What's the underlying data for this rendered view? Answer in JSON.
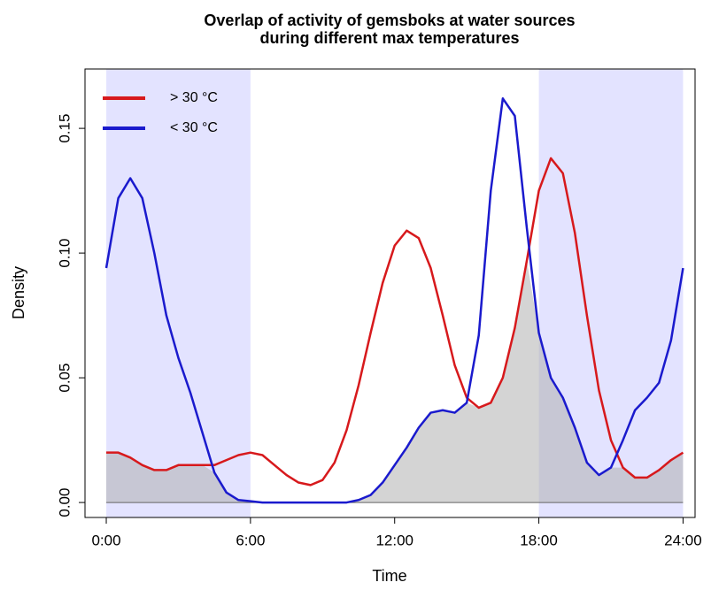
{
  "chart_data": {
    "type": "line",
    "title": [
      "Overlap of activity of gemsboks at water sources",
      "during different max temperatures"
    ],
    "x_label": "Time",
    "y_label": "Density",
    "xlim": [
      -0.885,
      24.5
    ],
    "ylim": [
      -0.006,
      0.1738
    ],
    "xticks": [
      {
        "value": 0,
        "label": "0:00"
      },
      {
        "value": 6,
        "label": "6:00"
      },
      {
        "value": 12,
        "label": "12:00"
      },
      {
        "value": 18,
        "label": "18:00"
      },
      {
        "value": 24,
        "label": "24:00"
      }
    ],
    "yticks": [
      {
        "value": 0,
        "label": "0.00"
      },
      {
        "value": 0.05,
        "label": "0.05"
      },
      {
        "value": 0.1,
        "label": "0.10"
      },
      {
        "value": 0.15,
        "label": "0.15"
      }
    ],
    "shaded_regions": [
      [
        0,
        6
      ],
      [
        18,
        24
      ]
    ],
    "shade_color": "#e0e0ff",
    "overlap_color": "#b0b0b0",
    "legend": "top-left",
    "x": [
      0,
      0.5,
      1,
      1.5,
      2,
      2.5,
      3,
      3.5,
      4,
      4.5,
      5,
      5.5,
      6,
      6.5,
      7,
      7.5,
      8,
      8.5,
      9,
      9.5,
      10,
      10.5,
      11,
      11.5,
      12,
      12.5,
      13,
      13.5,
      14,
      14.5,
      15,
      15.5,
      16,
      16.5,
      17,
      17.5,
      18,
      18.5,
      19,
      19.5,
      20,
      20.5,
      21,
      21.5,
      22,
      22.5,
      23,
      23.5,
      24
    ],
    "series": [
      {
        "name": "> 30 °C",
        "color": "#d7191c",
        "values": [
          0.02,
          0.02,
          0.018,
          0.015,
          0.013,
          0.013,
          0.015,
          0.015,
          0.015,
          0.015,
          0.017,
          0.019,
          0.02,
          0.019,
          0.015,
          0.011,
          0.008,
          0.007,
          0.009,
          0.016,
          0.029,
          0.047,
          0.068,
          0.088,
          0.103,
          0.109,
          0.106,
          0.094,
          0.075,
          0.055,
          0.042,
          0.038,
          0.04,
          0.05,
          0.07,
          0.097,
          0.125,
          0.138,
          0.132,
          0.108,
          0.075,
          0.045,
          0.025,
          0.014,
          0.01,
          0.01,
          0.013,
          0.017,
          0.02
        ]
      },
      {
        "name": "< 30 °C",
        "color": "#1a1acd",
        "values": [
          0.094,
          0.122,
          0.13,
          0.122,
          0.1,
          0.075,
          0.058,
          0.044,
          0.028,
          0.012,
          0.004,
          0.001,
          0.0005,
          0,
          0,
          0,
          0,
          0,
          0,
          0,
          0,
          0.001,
          0.003,
          0.008,
          0.015,
          0.022,
          0.03,
          0.036,
          0.037,
          0.036,
          0.04,
          0.067,
          0.125,
          0.162,
          0.155,
          0.11,
          0.068,
          0.05,
          0.042,
          0.03,
          0.016,
          0.011,
          0.014,
          0.025,
          0.037,
          0.042,
          0.048,
          0.065,
          0.094
        ]
      }
    ]
  }
}
